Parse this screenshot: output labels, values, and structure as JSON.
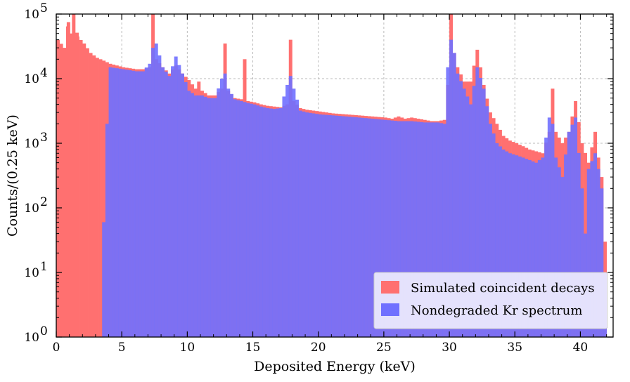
{
  "chart_data": {
    "type": "bar",
    "xlabel": "Deposited Energy (keV)",
    "ylabel": "Counts/(0.25 keV)",
    "xlim": [
      0,
      42.5
    ],
    "ylim": [
      1,
      100000
    ],
    "yscale": "log",
    "grid": true,
    "legend_position": "bottom-right",
    "x_ticks": [
      "0",
      "5",
      "10",
      "15",
      "20",
      "25",
      "30",
      "35",
      "40"
    ],
    "y_ticks": [
      {
        "value": 1,
        "label": "10",
        "exp": "0"
      },
      {
        "value": 10,
        "label": "10",
        "exp": "1"
      },
      {
        "value": 100,
        "label": "10",
        "exp": "2"
      },
      {
        "value": 1000,
        "label": "10",
        "exp": "3"
      },
      {
        "value": 10000,
        "label": "10",
        "exp": "4"
      },
      {
        "value": 100000,
        "label": "10",
        "exp": "5"
      }
    ],
    "bin_width": 0.25,
    "series": [
      {
        "name": "Simulated coincident decays",
        "color": "#ff7070",
        "points": [
          [
            0.0,
            40000
          ],
          [
            0.5,
            30000
          ],
          [
            0.8,
            75000
          ],
          [
            1.0,
            50000
          ],
          [
            1.2,
            100000
          ],
          [
            1.5,
            45000
          ],
          [
            2.0,
            35000
          ],
          [
            2.5,
            25000
          ],
          [
            3.0,
            21000
          ],
          [
            3.5,
            19000
          ],
          [
            4.0,
            17000
          ],
          [
            4.5,
            16000
          ],
          [
            5.0,
            15000
          ],
          [
            5.5,
            14500
          ],
          [
            6.0,
            14000
          ],
          [
            6.5,
            14000
          ],
          [
            7.0,
            15000
          ],
          [
            7.25,
            100000
          ],
          [
            7.5,
            20000
          ],
          [
            8.0,
            15000
          ],
          [
            8.5,
            12000
          ],
          [
            9.0,
            16000
          ],
          [
            9.5,
            12000
          ],
          [
            10.0,
            9500
          ],
          [
            10.5,
            7000
          ],
          [
            10.75,
            9000
          ],
          [
            11.0,
            6500
          ],
          [
            11.5,
            5500
          ],
          [
            12.0,
            5500
          ],
          [
            12.5,
            7000
          ],
          [
            12.75,
            35000
          ],
          [
            13.0,
            6500
          ],
          [
            13.5,
            5000
          ],
          [
            14.0,
            4800
          ],
          [
            14.25,
            20000
          ],
          [
            14.5,
            4500
          ],
          [
            15.0,
            4300
          ],
          [
            15.5,
            4000
          ],
          [
            16.0,
            3800
          ],
          [
            16.5,
            3700
          ],
          [
            17.0,
            3600
          ],
          [
            17.5,
            4000
          ],
          [
            17.75,
            40000
          ],
          [
            18.0,
            4500
          ],
          [
            18.5,
            3500
          ],
          [
            19.0,
            3300
          ],
          [
            19.5,
            3200
          ],
          [
            20.0,
            3100
          ],
          [
            20.5,
            3000
          ],
          [
            21.0,
            2900
          ],
          [
            22.0,
            2800
          ],
          [
            23.0,
            2700
          ],
          [
            24.0,
            2600
          ],
          [
            25.0,
            2500
          ],
          [
            25.5,
            2400
          ],
          [
            26.0,
            2600
          ],
          [
            26.5,
            2400
          ],
          [
            27.0,
            2500
          ],
          [
            27.5,
            2400
          ],
          [
            28.0,
            2300
          ],
          [
            28.5,
            2200
          ],
          [
            29.0,
            2200
          ],
          [
            29.5,
            2300
          ],
          [
            29.75,
            8000
          ],
          [
            30.0,
            100000
          ],
          [
            30.25,
            25000
          ],
          [
            30.5,
            15000
          ],
          [
            31.0,
            9000
          ],
          [
            31.5,
            9000
          ],
          [
            32.0,
            28000
          ],
          [
            32.5,
            8000
          ],
          [
            33.0,
            3000
          ],
          [
            33.5,
            2000
          ],
          [
            34.0,
            1300
          ],
          [
            34.5,
            1100
          ],
          [
            35.0,
            1000
          ],
          [
            35.5,
            900
          ],
          [
            36.0,
            800
          ],
          [
            36.5,
            750
          ],
          [
            37.0,
            700
          ],
          [
            37.5,
            1500
          ],
          [
            37.75,
            7000
          ],
          [
            38.0,
            1500
          ],
          [
            38.5,
            1000
          ],
          [
            39.0,
            1500
          ],
          [
            39.5,
            4500
          ],
          [
            40.0,
            1000
          ],
          [
            40.5,
            500
          ],
          [
            41.0,
            1500
          ],
          [
            41.25,
            600
          ],
          [
            41.5,
            300
          ],
          [
            41.75,
            30
          ]
        ]
      },
      {
        "name": "Nondegraded Kr spectrum",
        "color": "#7070ff",
        "points": [
          [
            3.25,
            1
          ],
          [
            3.5,
            60
          ],
          [
            3.75,
            2000
          ],
          [
            4.0,
            15000
          ],
          [
            4.5,
            14500
          ],
          [
            5.0,
            14000
          ],
          [
            5.5,
            13500
          ],
          [
            6.0,
            13000
          ],
          [
            6.5,
            13000
          ],
          [
            7.0,
            17000
          ],
          [
            7.25,
            30000
          ],
          [
            7.5,
            35000
          ],
          [
            8.0,
            15000
          ],
          [
            8.5,
            11000
          ],
          [
            9.0,
            22000
          ],
          [
            9.5,
            12000
          ],
          [
            10.0,
            6500
          ],
          [
            10.5,
            5500
          ],
          [
            11.0,
            5500
          ],
          [
            11.5,
            5000
          ],
          [
            12.0,
            5000
          ],
          [
            12.5,
            10000
          ],
          [
            12.75,
            12000
          ],
          [
            13.0,
            7000
          ],
          [
            13.5,
            4800
          ],
          [
            14.0,
            4500
          ],
          [
            14.5,
            4200
          ],
          [
            15.0,
            4000
          ],
          [
            15.5,
            3700
          ],
          [
            16.0,
            3500
          ],
          [
            16.5,
            3400
          ],
          [
            17.0,
            3500
          ],
          [
            17.5,
            8000
          ],
          [
            17.75,
            11000
          ],
          [
            18.0,
            7000
          ],
          [
            18.5,
            3200
          ],
          [
            19.0,
            3000
          ],
          [
            19.5,
            2900
          ],
          [
            20.0,
            2800
          ],
          [
            21.0,
            2700
          ],
          [
            22.0,
            2600
          ],
          [
            23.0,
            2500
          ],
          [
            24.0,
            2400
          ],
          [
            25.0,
            2300
          ],
          [
            26.0,
            2200
          ],
          [
            27.0,
            2200
          ],
          [
            28.0,
            2100
          ],
          [
            29.0,
            2100
          ],
          [
            29.5,
            2000
          ],
          [
            29.75,
            15000
          ],
          [
            30.0,
            40000
          ],
          [
            30.25,
            25000
          ],
          [
            30.5,
            12000
          ],
          [
            31.0,
            7000
          ],
          [
            31.5,
            4000
          ],
          [
            32.0,
            15000
          ],
          [
            32.5,
            7000
          ],
          [
            33.0,
            2000
          ],
          [
            33.5,
            1000
          ],
          [
            34.0,
            800
          ],
          [
            34.5,
            700
          ],
          [
            35.0,
            650
          ],
          [
            35.5,
            600
          ],
          [
            36.0,
            550
          ],
          [
            36.5,
            500
          ],
          [
            37.0,
            600
          ],
          [
            37.5,
            2500
          ],
          [
            37.75,
            2000
          ],
          [
            38.0,
            600
          ],
          [
            38.5,
            300
          ],
          [
            39.0,
            1500
          ],
          [
            39.5,
            2500
          ],
          [
            40.0,
            200
          ],
          [
            40.25,
            40
          ],
          [
            40.5,
            400
          ],
          [
            41.0,
            700
          ],
          [
            41.25,
            400
          ],
          [
            41.5,
            200
          ],
          [
            41.75,
            10
          ],
          [
            42.0,
            1
          ]
        ]
      }
    ]
  }
}
